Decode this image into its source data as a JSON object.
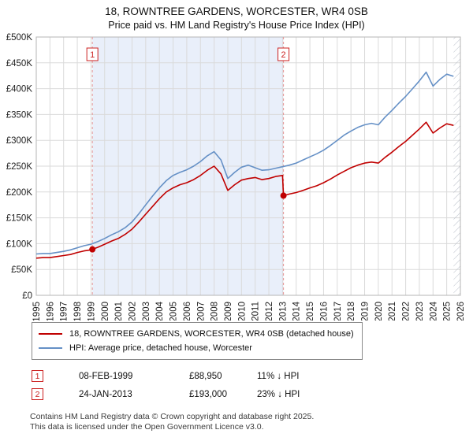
{
  "header": {
    "title": "18, ROWNTREE GARDENS, WORCESTER, WR4 0SB",
    "subtitle": "Price paid vs. HM Land Registry's House Price Index (HPI)"
  },
  "chart_data": {
    "type": "line",
    "x_range": [
      1995,
      2026
    ],
    "y_range_thousands": [
      0,
      500
    ],
    "y_unit": "GBP thousands",
    "x_ticks": [
      "1995",
      "1996",
      "1997",
      "1998",
      "1999",
      "2000",
      "2001",
      "2002",
      "2003",
      "2004",
      "2005",
      "2006",
      "2007",
      "2008",
      "2009",
      "2010",
      "2011",
      "2012",
      "2013",
      "2014",
      "2015",
      "2016",
      "2017",
      "2018",
      "2019",
      "2020",
      "2021",
      "2022",
      "2023",
      "2024",
      "2025",
      "2026"
    ],
    "y_tick_values": [
      0,
      50,
      100,
      150,
      200,
      250,
      300,
      350,
      400,
      450,
      500
    ],
    "y_tick_labels": [
      "£0",
      "£50K",
      "£100K",
      "£150K",
      "£200K",
      "£250K",
      "£300K",
      "£350K",
      "£400K",
      "£450K",
      "£500K"
    ],
    "grid": true,
    "legend_position": "below",
    "series": [
      {
        "id": "property",
        "name": "18, ROWNTREE GARDENS, WORCESTER, WR4 0SB (detached house)",
        "color": "#c00000",
        "x": [
          1995,
          1995.5,
          1996,
          1996.5,
          1997,
          1997.5,
          1998,
          1998.5,
          1999,
          1999.5,
          2000,
          2000.5,
          2001,
          2001.5,
          2002,
          2002.5,
          2003,
          2003.5,
          2004,
          2004.5,
          2005,
          2005.5,
          2006,
          2006.5,
          2007,
          2007.5,
          2008,
          2008.5,
          2009,
          2009.5,
          2010,
          2010.5,
          2011,
          2011.5,
          2012,
          2012.5,
          2013,
          2013.07,
          2013.5,
          2014,
          2014.5,
          2015,
          2015.5,
          2016,
          2016.5,
          2017,
          2017.5,
          2018,
          2018.5,
          2019,
          2019.5,
          2020,
          2020.5,
          2021,
          2021.5,
          2022,
          2022.5,
          2023,
          2023.5,
          2024,
          2024.5,
          2025,
          2025.5
        ],
        "y": [
          72,
          73,
          73,
          75,
          77,
          79,
          83,
          86,
          88,
          93,
          99,
          105,
          110,
          118,
          128,
          142,
          157,
          172,
          187,
          200,
          208,
          214,
          218,
          224,
          232,
          242,
          250,
          235,
          203,
          214,
          223,
          226,
          228,
          224,
          226,
          230,
          232,
          193,
          196,
          199,
          203,
          208,
          212,
          218,
          225,
          233,
          240,
          247,
          252,
          256,
          258,
          256,
          267,
          277,
          288,
          298,
          310,
          322,
          335,
          314,
          324,
          332,
          329
        ]
      },
      {
        "id": "hpi",
        "name": "HPI: Average price, detached house, Worcester",
        "color": "#6590c6",
        "x": [
          1995,
          1995.5,
          1996,
          1996.5,
          1997,
          1997.5,
          1998,
          1998.5,
          1999,
          1999.5,
          2000,
          2000.5,
          2001,
          2001.5,
          2002,
          2002.5,
          2003,
          2003.5,
          2004,
          2004.5,
          2005,
          2005.5,
          2006,
          2006.5,
          2007,
          2007.5,
          2008,
          2008.5,
          2009,
          2009.5,
          2010,
          2010.5,
          2011,
          2011.5,
          2012,
          2012.5,
          2013,
          2013.5,
          2014,
          2014.5,
          2015,
          2015.5,
          2016,
          2016.5,
          2017,
          2017.5,
          2018,
          2018.5,
          2019,
          2019.5,
          2020,
          2020.5,
          2021,
          2021.5,
          2022,
          2022.5,
          2023,
          2023.5,
          2024,
          2024.5,
          2025,
          2025.5
        ],
        "y": [
          80,
          81,
          81,
          83,
          85,
          88,
          92,
          96,
          99,
          104,
          110,
          117,
          123,
          131,
          142,
          158,
          175,
          192,
          208,
          222,
          232,
          238,
          243,
          250,
          259,
          270,
          278,
          262,
          226,
          238,
          248,
          252,
          247,
          242,
          243,
          246,
          249,
          252,
          256,
          262,
          268,
          274,
          281,
          290,
          300,
          310,
          318,
          325,
          330,
          333,
          330,
          345,
          358,
          372,
          385,
          400,
          415,
          432,
          405,
          418,
          428,
          424
        ]
      }
    ],
    "sales": [
      {
        "label": "1",
        "x": 1999.1,
        "y": 88.95
      },
      {
        "label": "2",
        "x": 2013.07,
        "y": 193
      }
    ],
    "shaded_region": [
      1999.1,
      2013.07
    ],
    "hatched_region": [
      2025.5,
      2026
    ],
    "colors": {
      "grid": "#dadada",
      "border": "#b5b5b5",
      "shade": "#e9effa",
      "hatch": "#b8bec8",
      "sale_line": "#e59595",
      "marker": "#c00000",
      "marker_box": "#cc2222"
    }
  },
  "legend": {
    "items": [
      {
        "label": "18, ROWNTREE GARDENS, WORCESTER, WR4 0SB (detached house)",
        "color": "#c00000"
      },
      {
        "label": "HPI: Average price, detached house, Worcester",
        "color": "#6590c6"
      }
    ]
  },
  "annotations": [
    {
      "num": "1",
      "date": "08-FEB-1999",
      "price": "£88,950",
      "delta": "11% ↓ HPI"
    },
    {
      "num": "2",
      "date": "24-JAN-2013",
      "price": "£193,000",
      "delta": "23% ↓ HPI"
    }
  ],
  "footer": {
    "line1": "Contains HM Land Registry data © Crown copyright and database right 2025.",
    "line2": "This data is licensed under the Open Government Licence v3.0."
  }
}
